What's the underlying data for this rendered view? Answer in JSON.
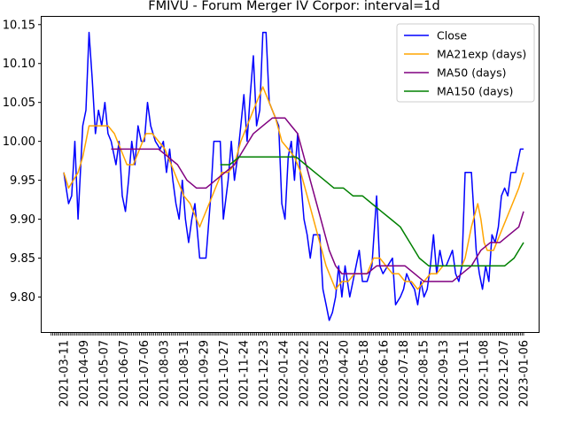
{
  "chart_data": {
    "type": "line",
    "title": "FMIVU - Forum Merger IV Corpor: interval=1d",
    "xlabel": "",
    "ylabel": "",
    "ylim": [
      9.755,
      10.16
    ],
    "yticks": [
      "9.80",
      "9.85",
      "9.90",
      "9.95",
      "10.00",
      "10.05",
      "10.10",
      "10.15"
    ],
    "x_tick_labels": [
      "2021-03-11",
      "2021-04-09",
      "2021-05-07",
      "2021-06-07",
      "2021-07-06",
      "2021-08-03",
      "2021-08-31",
      "2021-09-29",
      "2021-10-27",
      "2021-11-24",
      "2021-12-23",
      "2022-01-24",
      "2022-02-22",
      "2022-03-22",
      "2022-04-20",
      "2022-05-18",
      "2022-06-16",
      "2022-07-18",
      "2022-08-15",
      "2022-09-13",
      "2022-10-11",
      "2022-11-08",
      "2022-12-07",
      "2023-01-06"
    ],
    "grid": false,
    "legend_position": "top-right",
    "series": [
      {
        "name": "Close",
        "color": "#0000ff",
        "points": [
          [
            0,
            9.96
          ],
          [
            3,
            9.92
          ],
          [
            5,
            9.93
          ],
          [
            7,
            10.0
          ],
          [
            9,
            9.9
          ],
          [
            12,
            10.02
          ],
          [
            14,
            10.04
          ],
          [
            16,
            10.14
          ],
          [
            18,
            10.08
          ],
          [
            20,
            10.01
          ],
          [
            22,
            10.04
          ],
          [
            24,
            10.02
          ],
          [
            26,
            10.05
          ],
          [
            28,
            10.01
          ],
          [
            30,
            10.0
          ],
          [
            33,
            9.97
          ],
          [
            35,
            10.0
          ],
          [
            37,
            9.93
          ],
          [
            39,
            9.91
          ],
          [
            41,
            9.95
          ],
          [
            43,
            10.0
          ],
          [
            45,
            9.97
          ],
          [
            47,
            10.02
          ],
          [
            49,
            10.0
          ],
          [
            51,
            10.0
          ],
          [
            53,
            10.05
          ],
          [
            55,
            10.02
          ],
          [
            58,
            10.0
          ],
          [
            61,
            9.99
          ],
          [
            63,
            10.0
          ],
          [
            65,
            9.96
          ],
          [
            67,
            9.99
          ],
          [
            69,
            9.95
          ],
          [
            71,
            9.92
          ],
          [
            73,
            9.9
          ],
          [
            75,
            9.95
          ],
          [
            77,
            9.9
          ],
          [
            79,
            9.87
          ],
          [
            81,
            9.9
          ],
          [
            83,
            9.92
          ],
          [
            86,
            9.85
          ],
          [
            90,
            9.85
          ],
          [
            93,
            9.93
          ],
          [
            95,
            10.0
          ],
          [
            99,
            10.0
          ],
          [
            101,
            9.9
          ],
          [
            104,
            9.95
          ],
          [
            106,
            10.0
          ],
          [
            108,
            9.95
          ],
          [
            110,
            9.98
          ],
          [
            112,
            10.02
          ],
          [
            114,
            10.06
          ],
          [
            116,
            10.0
          ],
          [
            118,
            10.06
          ],
          [
            120,
            10.11
          ],
          [
            122,
            10.02
          ],
          [
            124,
            10.04
          ],
          [
            126,
            10.14
          ],
          [
            128,
            10.14
          ],
          [
            130,
            10.05
          ],
          [
            132,
            10.04
          ],
          [
            134,
            10.03
          ],
          [
            136,
            10.02
          ],
          [
            138,
            9.92
          ],
          [
            140,
            9.9
          ],
          [
            142,
            9.98
          ],
          [
            144,
            10.0
          ],
          [
            146,
            9.95
          ],
          [
            148,
            10.01
          ],
          [
            150,
            9.95
          ],
          [
            152,
            9.9
          ],
          [
            154,
            9.88
          ],
          [
            156,
            9.85
          ],
          [
            158,
            9.88
          ],
          [
            162,
            9.88
          ],
          [
            164,
            9.81
          ],
          [
            166,
            9.79
          ],
          [
            168,
            9.77
          ],
          [
            170,
            9.78
          ],
          [
            172,
            9.8
          ],
          [
            174,
            9.84
          ],
          [
            176,
            9.8
          ],
          [
            178,
            9.84
          ],
          [
            181,
            9.8
          ],
          [
            183,
            9.82
          ],
          [
            185,
            9.84
          ],
          [
            187,
            9.86
          ],
          [
            189,
            9.82
          ],
          [
            192,
            9.82
          ],
          [
            195,
            9.84
          ],
          [
            198,
            9.93
          ],
          [
            200,
            9.84
          ],
          [
            202,
            9.83
          ],
          [
            205,
            9.84
          ],
          [
            208,
            9.85
          ],
          [
            210,
            9.79
          ],
          [
            213,
            9.8
          ],
          [
            215,
            9.81
          ],
          [
            217,
            9.83
          ],
          [
            219,
            9.82
          ],
          [
            222,
            9.81
          ],
          [
            224,
            9.79
          ],
          [
            226,
            9.82
          ],
          [
            228,
            9.8
          ],
          [
            230,
            9.81
          ],
          [
            232,
            9.84
          ],
          [
            234,
            9.88
          ],
          [
            236,
            9.83
          ],
          [
            238,
            9.86
          ],
          [
            240,
            9.84
          ],
          [
            242,
            9.84
          ],
          [
            244,
            9.85
          ],
          [
            246,
            9.86
          ],
          [
            248,
            9.83
          ],
          [
            250,
            9.82
          ],
          [
            252,
            9.84
          ],
          [
            254,
            9.96
          ],
          [
            258,
            9.96
          ],
          [
            261,
            9.86
          ],
          [
            263,
            9.83
          ],
          [
            265,
            9.81
          ],
          [
            267,
            9.84
          ],
          [
            269,
            9.82
          ],
          [
            271,
            9.88
          ],
          [
            273,
            9.87
          ],
          [
            275,
            9.89
          ],
          [
            277,
            9.93
          ],
          [
            279,
            9.94
          ],
          [
            281,
            9.93
          ],
          [
            283,
            9.96
          ],
          [
            286,
            9.96
          ],
          [
            289,
            9.99
          ],
          [
            291,
            9.99
          ]
        ]
      },
      {
        "name": "MA21exp (days)",
        "color": "#ffa500",
        "points": [
          [
            0,
            9.96
          ],
          [
            3,
            9.94
          ],
          [
            6,
            9.95
          ],
          [
            9,
            9.96
          ],
          [
            12,
            9.98
          ],
          [
            14,
            10.0
          ],
          [
            16,
            10.02
          ],
          [
            20,
            10.02
          ],
          [
            24,
            10.02
          ],
          [
            28,
            10.02
          ],
          [
            32,
            10.01
          ],
          [
            36,
            9.99
          ],
          [
            40,
            9.97
          ],
          [
            44,
            9.97
          ],
          [
            48,
            9.99
          ],
          [
            52,
            10.01
          ],
          [
            56,
            10.01
          ],
          [
            60,
            10.0
          ],
          [
            64,
            9.99
          ],
          [
            68,
            9.97
          ],
          [
            72,
            9.95
          ],
          [
            76,
            9.93
          ],
          [
            80,
            9.92
          ],
          [
            84,
            9.9
          ],
          [
            86,
            9.89
          ],
          [
            88,
            9.9
          ],
          [
            92,
            9.92
          ],
          [
            96,
            9.94
          ],
          [
            100,
            9.96
          ],
          [
            104,
            9.96
          ],
          [
            108,
            9.97
          ],
          [
            112,
            10.0
          ],
          [
            116,
            10.02
          ],
          [
            120,
            10.04
          ],
          [
            124,
            10.06
          ],
          [
            126,
            10.07
          ],
          [
            130,
            10.05
          ],
          [
            134,
            10.03
          ],
          [
            138,
            10.0
          ],
          [
            142,
            9.99
          ],
          [
            146,
            9.98
          ],
          [
            150,
            9.96
          ],
          [
            154,
            9.93
          ],
          [
            158,
            9.9
          ],
          [
            162,
            9.87
          ],
          [
            166,
            9.84
          ],
          [
            170,
            9.82
          ],
          [
            172,
            9.81
          ],
          [
            176,
            9.82
          ],
          [
            180,
            9.82
          ],
          [
            184,
            9.83
          ],
          [
            188,
            9.83
          ],
          [
            192,
            9.83
          ],
          [
            196,
            9.85
          ],
          [
            200,
            9.85
          ],
          [
            204,
            9.84
          ],
          [
            208,
            9.83
          ],
          [
            212,
            9.83
          ],
          [
            216,
            9.82
          ],
          [
            220,
            9.82
          ],
          [
            224,
            9.81
          ],
          [
            228,
            9.82
          ],
          [
            232,
            9.83
          ],
          [
            236,
            9.83
          ],
          [
            240,
            9.84
          ],
          [
            244,
            9.84
          ],
          [
            248,
            9.84
          ],
          [
            252,
            9.84
          ],
          [
            254,
            9.85
          ],
          [
            258,
            9.89
          ],
          [
            262,
            9.92
          ],
          [
            264,
            9.9
          ],
          [
            266,
            9.87
          ],
          [
            268,
            9.86
          ],
          [
            272,
            9.86
          ],
          [
            276,
            9.88
          ],
          [
            280,
            9.9
          ],
          [
            284,
            9.92
          ],
          [
            288,
            9.94
          ],
          [
            291,
            9.96
          ]
        ]
      },
      {
        "name": "MA50 (days)",
        "color": "#800080",
        "points": [
          [
            30,
            9.99
          ],
          [
            36,
            9.99
          ],
          [
            42,
            9.99
          ],
          [
            48,
            9.99
          ],
          [
            54,
            9.99
          ],
          [
            60,
            9.99
          ],
          [
            66,
            9.98
          ],
          [
            72,
            9.97
          ],
          [
            78,
            9.95
          ],
          [
            84,
            9.94
          ],
          [
            90,
            9.94
          ],
          [
            96,
            9.95
          ],
          [
            102,
            9.96
          ],
          [
            108,
            9.97
          ],
          [
            114,
            9.99
          ],
          [
            120,
            10.01
          ],
          [
            126,
            10.02
          ],
          [
            132,
            10.03
          ],
          [
            136,
            10.03
          ],
          [
            140,
            10.03
          ],
          [
            144,
            10.02
          ],
          [
            148,
            10.01
          ],
          [
            152,
            9.98
          ],
          [
            156,
            9.95
          ],
          [
            160,
            9.92
          ],
          [
            164,
            9.89
          ],
          [
            168,
            9.86
          ],
          [
            172,
            9.84
          ],
          [
            176,
            9.83
          ],
          [
            180,
            9.83
          ],
          [
            186,
            9.83
          ],
          [
            192,
            9.83
          ],
          [
            198,
            9.84
          ],
          [
            204,
            9.84
          ],
          [
            210,
            9.84
          ],
          [
            216,
            9.84
          ],
          [
            222,
            9.83
          ],
          [
            228,
            9.82
          ],
          [
            234,
            9.82
          ],
          [
            240,
            9.82
          ],
          [
            246,
            9.82
          ],
          [
            252,
            9.83
          ],
          [
            258,
            9.84
          ],
          [
            264,
            9.86
          ],
          [
            270,
            9.87
          ],
          [
            276,
            9.87
          ],
          [
            282,
            9.88
          ],
          [
            288,
            9.89
          ],
          [
            291,
            9.91
          ]
        ]
      },
      {
        "name": "MA150 (days)",
        "color": "#008000",
        "points": [
          [
            99,
            9.97
          ],
          [
            105,
            9.97
          ],
          [
            111,
            9.98
          ],
          [
            117,
            9.98
          ],
          [
            123,
            9.98
          ],
          [
            129,
            9.98
          ],
          [
            135,
            9.98
          ],
          [
            141,
            9.98
          ],
          [
            147,
            9.98
          ],
          [
            153,
            9.97
          ],
          [
            159,
            9.96
          ],
          [
            165,
            9.95
          ],
          [
            171,
            9.94
          ],
          [
            177,
            9.94
          ],
          [
            183,
            9.93
          ],
          [
            189,
            9.93
          ],
          [
            195,
            9.92
          ],
          [
            201,
            9.91
          ],
          [
            207,
            9.9
          ],
          [
            213,
            9.89
          ],
          [
            219,
            9.87
          ],
          [
            225,
            9.85
          ],
          [
            231,
            9.84
          ],
          [
            237,
            9.84
          ],
          [
            243,
            9.84
          ],
          [
            249,
            9.84
          ],
          [
            255,
            9.84
          ],
          [
            261,
            9.84
          ],
          [
            267,
            9.84
          ],
          [
            273,
            9.84
          ],
          [
            279,
            9.84
          ],
          [
            285,
            9.85
          ],
          [
            291,
            9.87
          ]
        ]
      }
    ]
  }
}
